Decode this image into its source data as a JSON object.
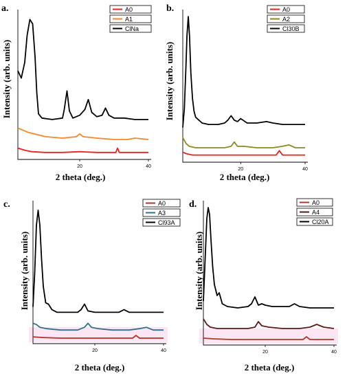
{
  "chart_data": [
    {
      "type": "line",
      "panel_label": "a.",
      "xlabel": "2 theta (deg.)",
      "ylabel": "Intensity (arb. units)",
      "xlim": [
        2,
        40
      ],
      "xticks": [
        20,
        40
      ],
      "tick_labels": [
        "20",
        "40"
      ],
      "series": [
        {
          "name": "A0",
          "color": "#e8201e",
          "x": [
            2,
            4,
            6,
            10,
            15,
            20,
            25,
            30,
            30.5,
            31,
            31.5,
            32,
            35,
            40
          ],
          "y": [
            0.06,
            0.045,
            0.035,
            0.03,
            0.03,
            0.035,
            0.03,
            0.03,
            0.03,
            0.06,
            0.03,
            0.03,
            0.03,
            0.03
          ]
        },
        {
          "name": "A1",
          "color": "#f5862a",
          "x": [
            2,
            5,
            10,
            15,
            19,
            20,
            21,
            25,
            30,
            34,
            36,
            40
          ],
          "y": [
            0.2,
            0.17,
            0.14,
            0.13,
            0.14,
            0.16,
            0.14,
            0.13,
            0.12,
            0.12,
            0.13,
            0.12
          ]
        },
        {
          "name": "ClNa",
          "color": "#000000",
          "x": [
            2,
            3,
            4,
            4.7,
            5.5,
            6.3,
            7,
            7.5,
            8,
            9,
            12,
            15,
            15.5,
            16.3,
            17,
            18,
            20,
            21.5,
            22.5,
            23.5,
            25,
            26.5,
            27.5,
            28.5,
            30,
            33,
            36,
            40
          ],
          "y": [
            0.6,
            0.55,
            0.66,
            0.85,
            0.96,
            0.93,
            0.7,
            0.45,
            0.3,
            0.27,
            0.26,
            0.27,
            0.33,
            0.46,
            0.32,
            0.27,
            0.29,
            0.33,
            0.4,
            0.31,
            0.28,
            0.29,
            0.34,
            0.29,
            0.27,
            0.27,
            0.26,
            0.26
          ]
        }
      ]
    },
    {
      "type": "line",
      "panel_label": "b.",
      "xlabel": "2 theta (deg.)",
      "ylabel": "Intensity (arb. units)",
      "xlim": [
        2,
        40
      ],
      "xticks": [
        20,
        40
      ],
      "tick_labels": [
        "20",
        "40"
      ],
      "series": [
        {
          "name": "A0",
          "color": "#e8201e",
          "x": [
            2,
            3,
            5,
            10,
            15,
            20,
            25,
            30,
            31,
            32,
            33,
            35,
            40
          ],
          "y": [
            0.05,
            0.04,
            0.03,
            0.03,
            0.03,
            0.03,
            0.03,
            0.03,
            0.03,
            0.06,
            0.03,
            0.03,
            0.03
          ]
        },
        {
          "name": "A2",
          "color": "#8a8a1e",
          "x": [
            2,
            3,
            4,
            6,
            10,
            15,
            17,
            18,
            19,
            21,
            25,
            30,
            33,
            35,
            37,
            40
          ],
          "y": [
            0.15,
            0.11,
            0.09,
            0.08,
            0.08,
            0.08,
            0.09,
            0.12,
            0.09,
            0.09,
            0.08,
            0.08,
            0.09,
            0.1,
            0.08,
            0.08
          ]
        },
        {
          "name": "Cl30B",
          "color": "#000000",
          "x": [
            2,
            2.5,
            3,
            3.3,
            3.7,
            4.1,
            4.5,
            5,
            5.5,
            6,
            7,
            8,
            10,
            13,
            15,
            16,
            17,
            18,
            19,
            20,
            22,
            25,
            28,
            30,
            33,
            36,
            40
          ],
          "y": [
            0.22,
            0.35,
            0.65,
            0.85,
            0.98,
            0.85,
            0.6,
            0.42,
            0.33,
            0.29,
            0.27,
            0.25,
            0.24,
            0.24,
            0.25,
            0.27,
            0.3,
            0.27,
            0.26,
            0.28,
            0.25,
            0.25,
            0.26,
            0.25,
            0.24,
            0.24,
            0.24
          ]
        }
      ]
    },
    {
      "type": "line",
      "panel_label": "c.",
      "xlabel": "2 theta (deg.)",
      "ylabel": "Intensity (arb. units)",
      "xlim": [
        2,
        40
      ],
      "xticks": [
        20,
        40
      ],
      "tick_labels": [
        "20",
        "40"
      ],
      "series": [
        {
          "name": "A0",
          "color": "#b0302a",
          "x": [
            2,
            5,
            10,
            15,
            20,
            25,
            30,
            31,
            32,
            33,
            35,
            40
          ],
          "y": [
            0.03,
            0.025,
            0.02,
            0.02,
            0.02,
            0.02,
            0.02,
            0.02,
            0.04,
            0.02,
            0.02,
            0.02
          ]
        },
        {
          "name": "A3",
          "color": "#2f6f8a",
          "x": [
            2,
            3,
            4,
            6,
            10,
            15,
            17,
            18,
            19,
            21,
            25,
            30,
            33,
            35,
            37,
            40
          ],
          "y": [
            0.13,
            0.12,
            0.1,
            0.09,
            0.08,
            0.08,
            0.1,
            0.13,
            0.1,
            0.09,
            0.08,
            0.08,
            0.09,
            0.1,
            0.08,
            0.08
          ]
        },
        {
          "name": "Cl93A",
          "color": "#000000",
          "x": [
            2,
            2.5,
            3,
            3.5,
            4,
            4.5,
            5,
            5.7,
            6.5,
            7.5,
            9,
            12,
            15,
            16,
            17,
            18,
            20,
            22,
            25,
            27,
            28.5,
            30,
            33,
            36,
            40
          ],
          "y": [
            0.25,
            0.5,
            0.85,
            0.96,
            0.85,
            0.6,
            0.4,
            0.28,
            0.27,
            0.23,
            0.21,
            0.21,
            0.21,
            0.23,
            0.27,
            0.22,
            0.21,
            0.21,
            0.21,
            0.21,
            0.23,
            0.21,
            0.21,
            0.21,
            0.21
          ]
        }
      ]
    },
    {
      "type": "line",
      "panel_label": "d.",
      "xlabel": "2 theta (deg.)",
      "ylabel": "Intensity (arb. units)",
      "xlim": [
        2,
        40
      ],
      "xticks": [
        20,
        40
      ],
      "tick_labels": [
        "20",
        "40"
      ],
      "series": [
        {
          "name": "A0",
          "color": "#a83a2a",
          "x": [
            2,
            5,
            10,
            15,
            20,
            25,
            30,
            31,
            32,
            33,
            35,
            40
          ],
          "y": [
            0.03,
            0.025,
            0.02,
            0.02,
            0.02,
            0.02,
            0.02,
            0.02,
            0.04,
            0.02,
            0.02,
            0.02
          ]
        },
        {
          "name": "A4",
          "color": "#5a1a16",
          "x": [
            2,
            3,
            4,
            6,
            10,
            15,
            17,
            18,
            19,
            21,
            25,
            30,
            33,
            35,
            37,
            40
          ],
          "y": [
            0.17,
            0.13,
            0.11,
            0.1,
            0.1,
            0.1,
            0.11,
            0.15,
            0.12,
            0.11,
            0.1,
            0.1,
            0.11,
            0.13,
            0.11,
            0.1
          ]
        },
        {
          "name": "Cl20A",
          "color": "#000000",
          "x": [
            2,
            2.5,
            3,
            3.4,
            3.8,
            4.2,
            4.7,
            5.2,
            6,
            6.6,
            7.5,
            9,
            12,
            15,
            16,
            17,
            18,
            19,
            20,
            22,
            25,
            27,
            28.5,
            30,
            33,
            36,
            40
          ],
          "y": [
            0.3,
            0.6,
            0.9,
            0.98,
            0.93,
            0.75,
            0.55,
            0.42,
            0.34,
            0.36,
            0.28,
            0.26,
            0.25,
            0.26,
            0.28,
            0.33,
            0.27,
            0.28,
            0.27,
            0.26,
            0.26,
            0.26,
            0.28,
            0.26,
            0.25,
            0.25,
            0.25
          ]
        }
      ]
    }
  ]
}
